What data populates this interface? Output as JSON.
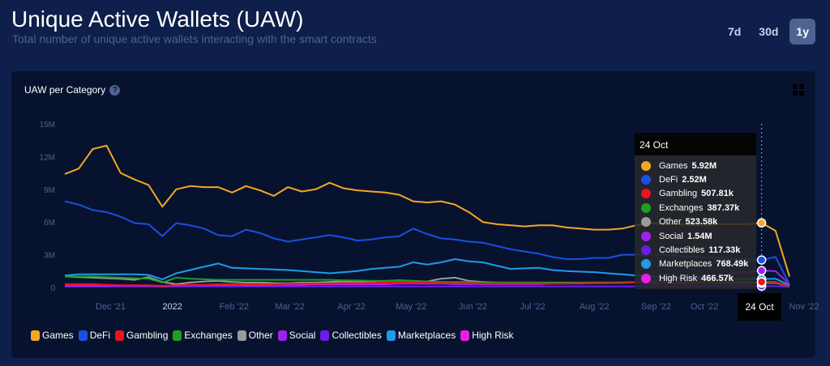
{
  "header": {
    "title": "Unique Active Wallets (UAW)",
    "subtitle": "Total number of unique active wallets interacting with the smart contracts"
  },
  "ranges": [
    {
      "label": "7d",
      "active": false
    },
    {
      "label": "30d",
      "active": false
    },
    {
      "label": "1y",
      "active": true
    }
  ],
  "card": {
    "title": "UAW per Category",
    "help_icon": "question-circle-icon",
    "expand_icon": "expand-icon"
  },
  "chart_data": {
    "type": "line",
    "title": "UAW per Category",
    "x_start": "2021-11-08",
    "x_step_days": 7,
    "x_tick_labels": [
      "Dec '21",
      "2022",
      "Feb '22",
      "Mar '22",
      "Apr '22",
      "May '22",
      "Jun '22",
      "Jul '22",
      "Aug '22",
      "Sep '22",
      "Oct '22",
      "Nov '22"
    ],
    "x_tick_dates": [
      "2021-12-01",
      "2022-01-01",
      "2022-02-01",
      "2022-03-01",
      "2022-04-01",
      "2022-05-01",
      "2022-06-01",
      "2022-07-01",
      "2022-08-01",
      "2022-09-01",
      "2022-10-01",
      "2022-11-01"
    ],
    "x_tick_visible": [
      "Dec '21",
      "2022",
      "Feb '22",
      "Mar '22",
      "Apr '22",
      "May '22",
      "Jun '22",
      "Jul '22",
      "Aug '22",
      "Sep '22",
      "Oct '22",
      "'22"
    ],
    "y_ticks": [
      0,
      3000000,
      6000000,
      9000000,
      12000000,
      15000000
    ],
    "y_tick_labels": [
      "0",
      "3M",
      "6M",
      "9M",
      "12M",
      "15M"
    ],
    "ylim": [
      0,
      15000000
    ],
    "grid": false,
    "legend_position": "bottom-left",
    "series": [
      {
        "name": "Games",
        "color": "#f5a623",
        "values": [
          10.4,
          10.9,
          12.7,
          13.0,
          10.5,
          9.9,
          9.4,
          7.4,
          9.0,
          9.3,
          9.2,
          9.2,
          8.7,
          9.3,
          8.9,
          8.4,
          9.2,
          8.8,
          9.0,
          9.6,
          9.1,
          8.9,
          8.8,
          8.7,
          8.5,
          7.9,
          7.8,
          7.9,
          7.6,
          6.9,
          6.0,
          5.8,
          5.7,
          5.6,
          5.7,
          5.7,
          5.5,
          5.4,
          5.3,
          5.3,
          5.4,
          5.7,
          5.9,
          5.8,
          5.8,
          5.7,
          5.7,
          5.8,
          5.8,
          5.8,
          5.92,
          5.2,
          1.0
        ]
      },
      {
        "name": "DeFi",
        "color": "#1a4fe0",
        "values": [
          7.9,
          7.6,
          7.1,
          6.9,
          6.5,
          5.9,
          5.8,
          4.7,
          5.9,
          5.7,
          5.4,
          4.8,
          4.7,
          5.3,
          5.0,
          4.5,
          4.2,
          4.4,
          4.6,
          4.8,
          4.6,
          4.3,
          4.4,
          4.6,
          4.7,
          5.4,
          4.9,
          4.5,
          4.4,
          4.2,
          4.1,
          3.8,
          3.5,
          3.3,
          3.1,
          2.8,
          2.6,
          2.6,
          2.7,
          2.7,
          3.0,
          3.0,
          3.0,
          3.0,
          2.9,
          2.8,
          2.7,
          2.7,
          2.6,
          2.6,
          2.52,
          2.8,
          0.3
        ]
      },
      {
        "name": "Gambling",
        "color": "#e8141e",
        "values": [
          0.3,
          0.3,
          0.3,
          0.25,
          0.2,
          0.2,
          0.2,
          0.15,
          0.2,
          0.25,
          0.25,
          0.3,
          0.3,
          0.3,
          0.3,
          0.3,
          0.35,
          0.35,
          0.35,
          0.35,
          0.4,
          0.4,
          0.4,
          0.45,
          0.45,
          0.45,
          0.45,
          0.4,
          0.4,
          0.4,
          0.35,
          0.35,
          0.35,
          0.35,
          0.35,
          0.35,
          0.35,
          0.4,
          0.4,
          0.4,
          0.4,
          0.45,
          0.45,
          0.45,
          0.5,
          0.5,
          0.5,
          0.5,
          0.5,
          0.5,
          0.51,
          0.5,
          0.1
        ]
      },
      {
        "name": "Exchanges",
        "color": "#1f9e1f",
        "values": [
          1.0,
          1.0,
          1.0,
          0.95,
          0.9,
          0.85,
          0.8,
          0.45,
          0.9,
          0.8,
          0.75,
          0.7,
          0.7,
          0.7,
          0.7,
          0.7,
          0.7,
          0.7,
          0.7,
          0.7,
          0.65,
          0.65,
          0.6,
          0.6,
          0.6,
          0.6,
          0.55,
          0.5,
          0.5,
          0.5,
          0.45,
          0.45,
          0.45,
          0.45,
          0.45,
          0.45,
          0.45,
          0.45,
          0.45,
          0.45,
          0.45,
          0.45,
          0.4,
          0.4,
          0.4,
          0.4,
          0.4,
          0.4,
          0.4,
          0.4,
          0.39,
          0.4,
          0.1
        ]
      },
      {
        "name": "Other",
        "color": "#9a9a9a",
        "values": [
          1.0,
          0.95,
          0.9,
          0.85,
          0.8,
          0.7,
          0.95,
          0.5,
          0.3,
          0.45,
          0.55,
          0.6,
          0.5,
          0.45,
          0.45,
          0.4,
          0.4,
          0.45,
          0.45,
          0.5,
          0.55,
          0.5,
          0.55,
          0.6,
          0.65,
          0.6,
          0.55,
          0.8,
          0.9,
          0.6,
          0.5,
          0.45,
          0.4,
          0.4,
          0.4,
          0.4,
          0.4,
          0.4,
          0.4,
          0.4,
          0.45,
          0.45,
          0.45,
          0.45,
          0.5,
          0.5,
          0.5,
          0.5,
          0.52,
          0.52,
          0.52,
          0.5,
          0.1
        ]
      },
      {
        "name": "Social",
        "color": "#a020f0",
        "values": [
          0.15,
          0.15,
          0.15,
          0.15,
          0.15,
          0.15,
          0.15,
          0.1,
          0.15,
          0.2,
          0.2,
          0.25,
          0.25,
          0.3,
          0.3,
          0.3,
          0.3,
          0.35,
          0.35,
          0.35,
          0.35,
          0.35,
          0.35,
          0.35,
          0.35,
          0.35,
          0.35,
          0.35,
          0.3,
          0.3,
          0.3,
          0.3,
          0.3,
          0.3,
          0.3,
          0.35,
          0.35,
          0.35,
          0.4,
          0.4,
          0.45,
          0.5,
          0.6,
          0.7,
          0.8,
          0.9,
          1.0,
          1.1,
          1.3,
          1.4,
          1.54,
          1.5,
          0.3
        ]
      },
      {
        "name": "Collectibles",
        "color": "#6a1ee8",
        "values": [
          0.1,
          0.1,
          0.1,
          0.1,
          0.1,
          0.1,
          0.1,
          0.08,
          0.1,
          0.1,
          0.1,
          0.1,
          0.1,
          0.1,
          0.1,
          0.1,
          0.1,
          0.1,
          0.1,
          0.1,
          0.1,
          0.1,
          0.1,
          0.1,
          0.1,
          0.1,
          0.1,
          0.1,
          0.1,
          0.1,
          0.1,
          0.1,
          0.1,
          0.1,
          0.1,
          0.1,
          0.1,
          0.1,
          0.1,
          0.1,
          0.1,
          0.1,
          0.1,
          0.1,
          0.1,
          0.1,
          0.12,
          0.12,
          0.12,
          0.12,
          0.12,
          0.12,
          0.05
        ]
      },
      {
        "name": "Marketplaces",
        "color": "#1e9be8",
        "values": [
          1.1,
          1.2,
          1.2,
          1.2,
          1.2,
          1.2,
          1.15,
          0.75,
          1.3,
          1.6,
          1.9,
          2.2,
          1.8,
          1.75,
          1.7,
          1.65,
          1.6,
          1.5,
          1.4,
          1.3,
          1.4,
          1.5,
          1.7,
          1.8,
          1.9,
          2.3,
          2.1,
          2.3,
          2.6,
          2.4,
          2.3,
          2.0,
          1.7,
          1.75,
          1.8,
          1.6,
          1.5,
          1.45,
          1.4,
          1.3,
          1.2,
          1.1,
          1.0,
          0.95,
          0.9,
          0.85,
          0.8,
          0.8,
          0.78,
          0.77,
          0.77,
          0.8,
          0.2
        ]
      },
      {
        "name": "High Risk",
        "color": "#e81ee8",
        "values": [
          0.1,
          0.1,
          0.1,
          0.1,
          0.12,
          0.12,
          0.12,
          0.1,
          0.12,
          0.15,
          0.15,
          0.15,
          0.2,
          0.2,
          0.2,
          0.25,
          0.25,
          0.25,
          0.3,
          0.3,
          0.3,
          0.3,
          0.3,
          0.3,
          0.35,
          0.35,
          0.35,
          0.35,
          0.35,
          0.35,
          0.4,
          0.4,
          0.4,
          0.4,
          0.4,
          0.4,
          0.4,
          0.4,
          0.45,
          0.45,
          0.45,
          0.45,
          0.45,
          0.45,
          0.45,
          0.47,
          0.47,
          0.47,
          0.47,
          0.47,
          0.47,
          0.45,
          0.1
        ]
      }
    ],
    "value_unit": "millions",
    "tooltip": {
      "date": "24 Oct",
      "index": 50,
      "rows": [
        {
          "name": "Games",
          "value": "5.92M"
        },
        {
          "name": "DeFi",
          "value": "2.52M"
        },
        {
          "name": "Gambling",
          "value": "507.81k"
        },
        {
          "name": "Exchanges",
          "value": "387.37k"
        },
        {
          "name": "Other",
          "value": "523.58k"
        },
        {
          "name": "Social",
          "value": "1.54M"
        },
        {
          "name": "Collectibles",
          "value": "117.33k"
        },
        {
          "name": "Marketplaces",
          "value": "768.49k"
        },
        {
          "name": "High Risk",
          "value": "466.57k"
        }
      ]
    }
  }
}
